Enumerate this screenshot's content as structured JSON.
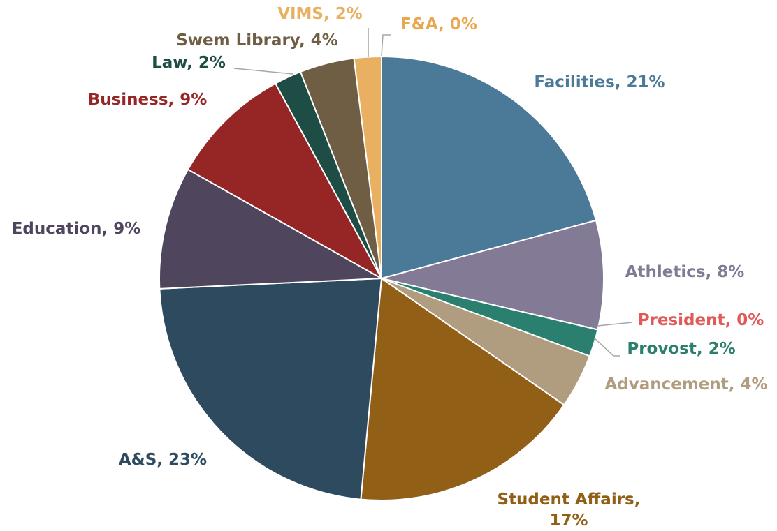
{
  "chart_data": {
    "type": "pie",
    "labels": [
      [
        "Facilities, 21%"
      ],
      [
        "Athletics, 8%"
      ],
      [
        "President, 0%"
      ],
      [
        "Provost, 2%"
      ],
      [
        "Advancement, 4%"
      ],
      [
        "Student Affairs,",
        "17%"
      ],
      [
        "A&S, 23%"
      ],
      [
        "Education, 9%"
      ],
      [
        "Business, 9%"
      ],
      [
        "Law, 2%"
      ],
      [
        "Swem Library, 4%"
      ],
      [
        "VIMS, 2%"
      ],
      [
        "F&A, 0%"
      ]
    ],
    "values": [
      21,
      8,
      0,
      2,
      4,
      17,
      23,
      9,
      9,
      2,
      4,
      2,
      0
    ],
    "colors": [
      "#4a7a98",
      "#837a96",
      "#e05a5a",
      "#2a7f6f",
      "#b09c7e",
      "#925f17",
      "#2d4a5e",
      "#4f465d",
      "#962626",
      "#1e4d45",
      "#6f5d44",
      "#e8b060",
      "#e8a850"
    ]
  }
}
